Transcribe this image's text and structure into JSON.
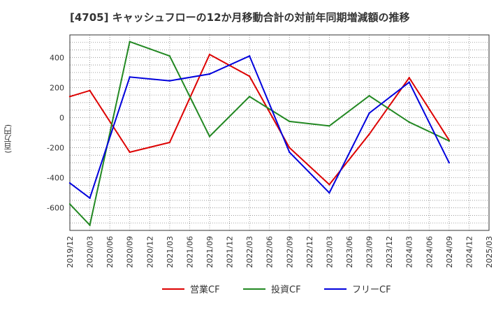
{
  "chart_data": {
    "type": "line",
    "title": "[4705]  キャッシュフローの12か月移動合計の対前年同期増減額の推移",
    "ylabel": "(百万円)",
    "xlabel": "",
    "ylim": [
      -750,
      550
    ],
    "yticks": [
      -600,
      -400,
      -200,
      0,
      200,
      400
    ],
    "categories": [
      "2019/12",
      "2020/03",
      "2020/06",
      "2020/09",
      "2020/12",
      "2021/03",
      "2021/06",
      "2021/09",
      "2021/12",
      "2022/03",
      "2022/06",
      "2022/09",
      "2022/12",
      "2023/03",
      "2023/06",
      "2023/09",
      "2023/12",
      "2024/03",
      "2024/06",
      "2024/09",
      "2024/12",
      "2025/03"
    ],
    "series": [
      {
        "name": "営業CF",
        "color": "#dd0000",
        "values": [
          140,
          180,
          null,
          -230,
          null,
          -165,
          null,
          420,
          null,
          275,
          null,
          -200,
          null,
          -445,
          null,
          -110,
          null,
          265,
          null,
          -150,
          null,
          null
        ]
      },
      {
        "name": "投資CF",
        "color": "#228822",
        "values": [
          -575,
          -715,
          null,
          505,
          null,
          410,
          null,
          -125,
          null,
          140,
          null,
          -25,
          null,
          -55,
          null,
          145,
          null,
          -30,
          null,
          -155,
          null,
          null
        ]
      },
      {
        "name": "フリーCF",
        "color": "#0000dd",
        "values": [
          -435,
          -535,
          null,
          270,
          null,
          245,
          null,
          290,
          null,
          410,
          null,
          -230,
          null,
          -500,
          null,
          30,
          null,
          235,
          null,
          -300,
          null,
          null
        ]
      }
    ],
    "legend": "bottom"
  }
}
